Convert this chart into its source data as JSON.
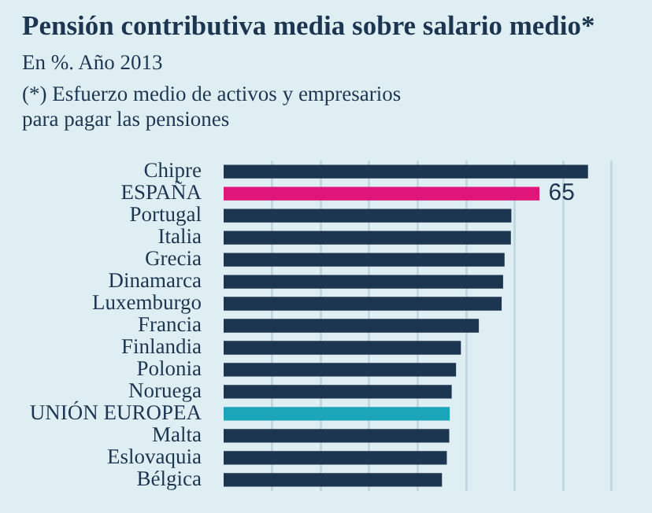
{
  "chart_data": {
    "type": "bar",
    "orientation": "horizontal",
    "title": "Pensión contributiva media sobre salario medio*",
    "subtitle": "En %. Año 2013",
    "annotations": [
      "(*) Esfuerzo medio de activos y empresarios para pagar las pensiones"
    ],
    "categories": [
      "Chipre",
      "ESPAÑA",
      "Portugal",
      "Italia",
      "Grecia",
      "Dinamarca",
      "Luxemburgo",
      "Francia",
      "Finlandia",
      "Polonia",
      "Noruega",
      "UNIÓN EUROPEA",
      "Malta",
      "Eslovaquia",
      "Bélgica"
    ],
    "values": [
      75,
      65,
      59.2,
      59.1,
      57.8,
      57.5,
      57.2,
      52.5,
      48.8,
      47.8,
      46.9,
      46.5,
      46.4,
      45.9,
      44.9
    ],
    "colors": [
      "#1c3550",
      "#e0157a",
      "#1c3550",
      "#1c3550",
      "#1c3550",
      "#1c3550",
      "#1c3550",
      "#1c3550",
      "#1c3550",
      "#1c3550",
      "#1c3550",
      "#1aa5b8",
      "#1c3550",
      "#1c3550",
      "#1c3550"
    ],
    "value_labels": [
      null,
      "65",
      null,
      null,
      null,
      null,
      null,
      null,
      null,
      null,
      null,
      null,
      null,
      null,
      null
    ],
    "xlim": [
      0,
      87
    ],
    "xticks": [
      {
        "value": 10,
        "label": null
      },
      {
        "value": 20,
        "label": null
      },
      {
        "value": 30,
        "label": null
      },
      {
        "value": 40,
        "label": null
      },
      {
        "value": 50,
        "label": null
      },
      {
        "value": 60,
        "label": null
      },
      {
        "value": 70,
        "label": null
      },
      {
        "value": 80,
        "label": null
      }
    ],
    "grid": "x",
    "tick_labels": "y"
  }
}
